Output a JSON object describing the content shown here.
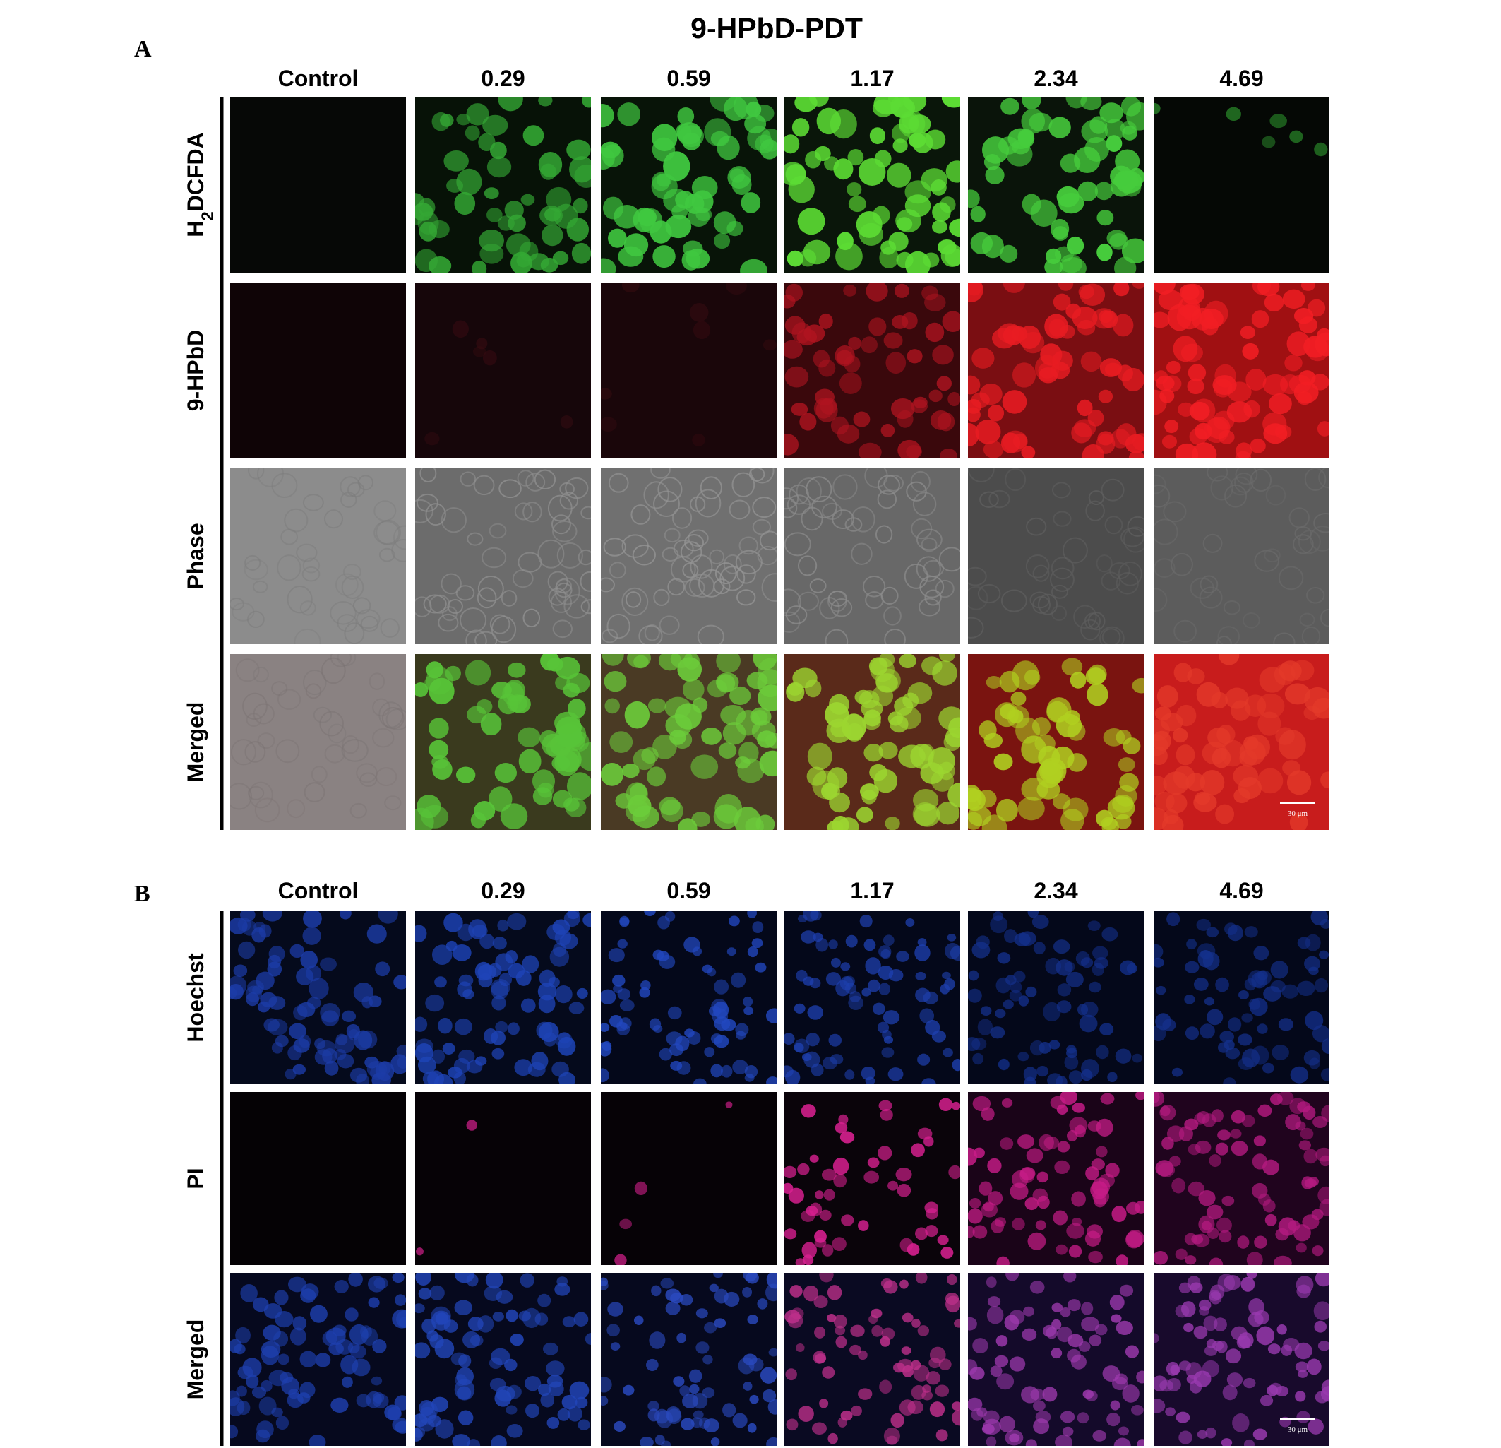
{
  "title": "9-HPbD-PDT",
  "panels": [
    {
      "label": "A",
      "columns": [
        "Control",
        "0.29",
        "0.59",
        "1.17",
        "2.34",
        "4.69"
      ],
      "rows": [
        {
          "main": "H",
          "sub": "2",
          "tail": "DCFDA"
        },
        {
          "main": "9-HPbD"
        },
        {
          "main": "Phase"
        },
        {
          "main": "Merged"
        }
      ],
      "scale_bar": "30 μm"
    },
    {
      "label": "B",
      "columns": [
        "Control",
        "0.29",
        "0.59",
        "1.17",
        "2.34",
        "4.69"
      ],
      "rows": [
        {
          "main": "Hoechst"
        },
        {
          "main": "PI"
        },
        {
          "main": "Merged"
        }
      ],
      "scale_bar": "30 μm"
    }
  ]
}
